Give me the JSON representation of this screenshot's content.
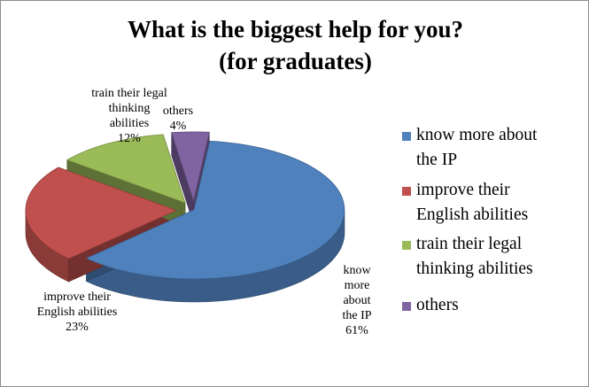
{
  "chart_data": {
    "type": "pie",
    "title": "What is the biggest help for you?",
    "subtitle": "(for graduates)",
    "categories": [
      "know more about the IP",
      "improve their English abilities",
      "train their legal thinking abilities",
      "others"
    ],
    "values": [
      61,
      23,
      12,
      4
    ],
    "unit": "%",
    "data_labels": [
      {
        "lines": [
          "know",
          "more",
          "about",
          "the IP"
        ],
        "pct": "61%"
      },
      {
        "lines": [
          "improve their",
          "English abilities"
        ],
        "pct": "23%"
      },
      {
        "lines": [
          "train their legal",
          "thinking",
          "abilities"
        ],
        "pct": "12%"
      },
      {
        "lines": [
          "others"
        ],
        "pct": "4%"
      }
    ],
    "legend": {
      "placement": "right",
      "items": [
        [
          "know more about",
          "the IP"
        ],
        [
          "improve their",
          "English abilities"
        ],
        [
          "train their legal",
          "thinking abilities"
        ],
        [
          "others"
        ]
      ]
    },
    "colors": [
      "#4f81bd",
      "#c0504d",
      "#9bbb59",
      "#8064a2"
    ],
    "style": "3d-exploded-pie"
  }
}
